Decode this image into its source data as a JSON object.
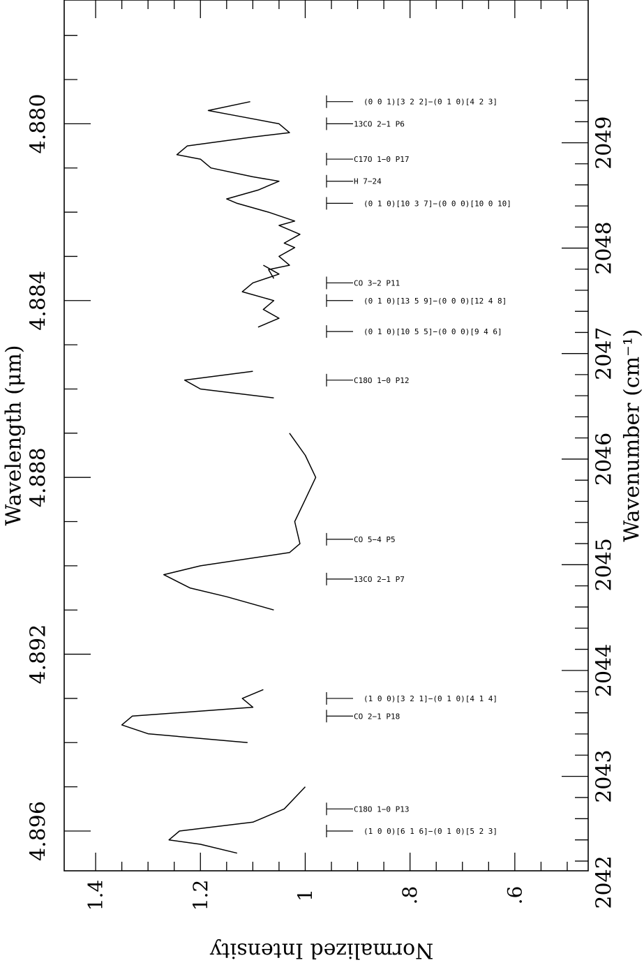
{
  "chart_data": {
    "type": "line",
    "title": "",
    "ylabel": "Normalized Intensity",
    "xlabel_top": "Wavelength (μm)",
    "xlabel_bottom": "Wavenumber (cm⁻¹)",
    "ylabel_sup": "−1",
    "intensity_range": [
      0.46,
      1.46
    ],
    "intensity_ticks": [
      {
        "value": 1.4,
        "label": "1.4"
      },
      {
        "value": 1.2,
        "label": "1.2"
      },
      {
        "value": 1.0,
        "label": "1"
      },
      {
        "value": 0.8,
        "label": ".8"
      },
      {
        "value": 0.6,
        "label": ".6"
      }
    ],
    "wavelength_range": [
      4.8772,
      4.8969
    ],
    "wavelength_ticks": [
      {
        "value": 4.88,
        "label": "4.880"
      },
      {
        "value": 4.884,
        "label": "4.884"
      },
      {
        "value": 4.888,
        "label": "4.888"
      },
      {
        "value": 4.892,
        "label": "4.892"
      },
      {
        "value": 4.896,
        "label": "4.896"
      }
    ],
    "wavenumber_ticks": [
      {
        "value": 2049,
        "label": "2049"
      },
      {
        "value": 2048,
        "label": "2048"
      },
      {
        "value": 2047,
        "label": "2047"
      },
      {
        "value": 2046,
        "label": "2046"
      },
      {
        "value": 2045,
        "label": "2045"
      },
      {
        "value": 2044,
        "label": "2044"
      },
      {
        "value": 2043,
        "label": "2043"
      },
      {
        "value": 2042,
        "label": "2042"
      }
    ],
    "segments": [
      {
        "wavelength": [
          4.8795,
          4.8797,
          4.8798,
          4.88,
          4.8802,
          4.8803,
          4.8805,
          4.8807,
          4.8808,
          4.881,
          4.8812,
          4.8813,
          4.8815,
          4.8817,
          4.8818,
          4.882,
          4.8822,
          4.8823,
          4.8825,
          4.8827,
          4.8828,
          4.883,
          4.8832,
          4.8833,
          4.8835
        ],
        "intensity": [
          1.105,
          1.185,
          1.14,
          1.05,
          1.03,
          1.1,
          1.225,
          1.245,
          1.2,
          1.18,
          1.1,
          1.05,
          1.09,
          1.15,
          1.13,
          1.07,
          1.02,
          1.05,
          1.01,
          1.04,
          1.02,
          1.05,
          1.03,
          1.07,
          1.06
        ]
      },
      {
        "wavelength": [
          4.8832,
          4.8834,
          4.8836,
          4.8838,
          4.884,
          4.8842,
          4.8844,
          4.8846
        ],
        "intensity": [
          1.08,
          1.05,
          1.1,
          1.12,
          1.06,
          1.08,
          1.05,
          1.09
        ]
      },
      {
        "wavelength": [
          4.8856,
          4.8858,
          4.886,
          4.8862
        ],
        "intensity": [
          1.1,
          1.23,
          1.2,
          1.06
        ]
      },
      {
        "wavelength": [
          4.887,
          4.8875,
          4.888,
          4.8885,
          4.889,
          4.8895,
          4.8897,
          4.89,
          4.8902,
          4.8905,
          4.8907,
          4.891
        ],
        "intensity": [
          1.03,
          1.0,
          0.98,
          1.0,
          1.02,
          1.01,
          1.03,
          1.2,
          1.27,
          1.22,
          1.15,
          1.06
        ]
      },
      {
        "wavelength": [
          4.8928,
          4.893,
          4.8932,
          4.8934,
          4.8936,
          4.8938,
          4.894
        ],
        "intensity": [
          1.08,
          1.12,
          1.1,
          1.33,
          1.35,
          1.3,
          1.11
        ]
      },
      {
        "wavelength": [
          4.895,
          4.8955,
          4.8958,
          4.896,
          4.8962,
          4.8963,
          4.8965
        ],
        "intensity": [
          1.0,
          1.04,
          1.1,
          1.24,
          1.26,
          1.2,
          1.13
        ]
      }
    ],
    "line_ids": [
      {
        "wavelength": 4.8795,
        "label": "(0 0 1)[3 2 2]−(0 1 0)[4 2 3]",
        "style": "offset"
      },
      {
        "wavelength": 4.88,
        "label": "13CO 2−1 P6",
        "style": "near"
      },
      {
        "wavelength": 4.8808,
        "label": "C17O 1−0 P17",
        "style": "near"
      },
      {
        "wavelength": 4.8813,
        "label": "H 7−24",
        "style": "near"
      },
      {
        "wavelength": 4.8818,
        "label": "(0 1 0)[10 3 7]−(0 0 0)[10 0 10]",
        "style": "offset"
      },
      {
        "wavelength": 4.8836,
        "label": "CO 3−2 P11",
        "style": "near"
      },
      {
        "wavelength": 4.884,
        "label": "(0 1 0)[13 5 9]−(0 0 0)[12 4 8]",
        "style": "offset"
      },
      {
        "wavelength": 4.8847,
        "label": "(0 1 0)[10 5 5]−(0 0 0)[9 4 6]",
        "style": "offset"
      },
      {
        "wavelength": 4.8858,
        "label": "C18O 1−0 P12",
        "style": "near"
      },
      {
        "wavelength": 4.8894,
        "label": "CO 5−4 P5",
        "style": "near"
      },
      {
        "wavelength": 4.8903,
        "label": "13CO 2−1 P7",
        "style": "near"
      },
      {
        "wavelength": 4.893,
        "label": "(1 0 0)[3 2 1]−(0 1 0)[4 1 4]",
        "style": "offset"
      },
      {
        "wavelength": 4.8934,
        "label": "CO 2−1 P18",
        "style": "near"
      },
      {
        "wavelength": 4.8955,
        "label": "C18O 1−0 P13",
        "style": "near"
      },
      {
        "wavelength": 4.896,
        "label": "(1 0 0)[6 1 6]−(0 1 0)[5 2 3]",
        "style": "offset"
      }
    ],
    "grid": false,
    "legend": "none"
  }
}
